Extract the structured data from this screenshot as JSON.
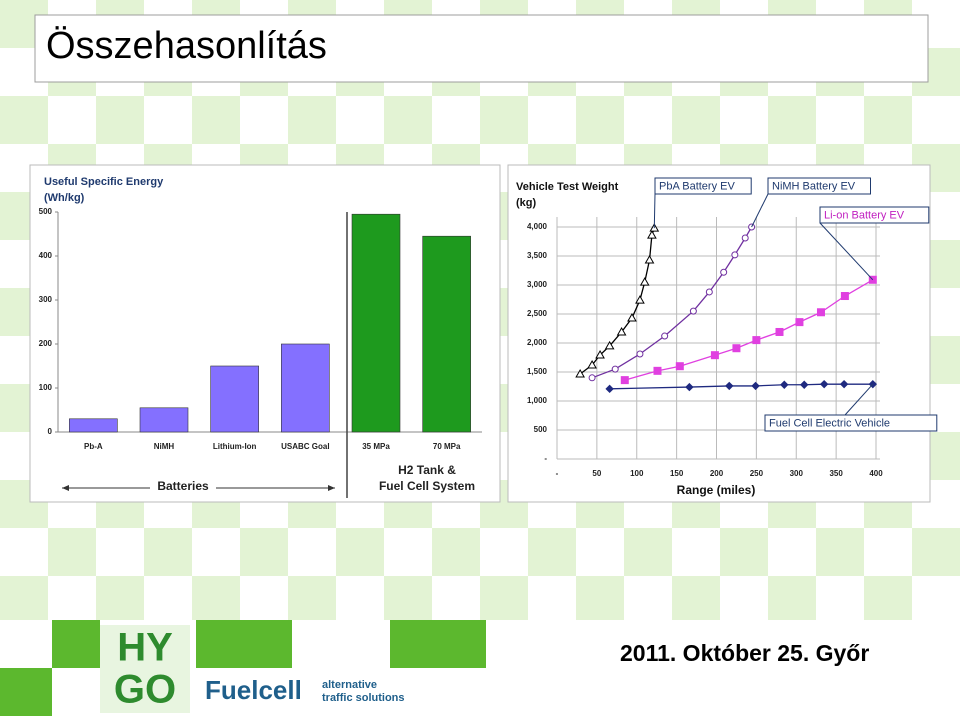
{
  "header": {
    "title": "Összehasonlítás"
  },
  "footer": {
    "date": "2011. Október 25. Győr",
    "logo": [
      "HY",
      "GO"
    ],
    "brand": "Fuelcell",
    "tagline": [
      "alternative",
      "traffic solutions"
    ]
  },
  "chart_data": [
    {
      "type": "bar",
      "title": [
        "Useful Specific Energy",
        "(Wh/kg)"
      ],
      "categories": [
        "Pb-A",
        "NiMH",
        "Lithium-Ion",
        "USABC Goal",
        "35 MPa",
        "70 MPa"
      ],
      "values": [
        30,
        55,
        150,
        200,
        495,
        445
      ],
      "colors": [
        "#8470ff",
        "#8470ff",
        "#8470ff",
        "#8470ff",
        "#1e9a1e",
        "#1e9a1e"
      ],
      "ylim": [
        0,
        500
      ],
      "yticks": [
        0,
        100,
        200,
        300,
        400,
        500
      ],
      "group_labels": [
        [
          "Batteries"
        ],
        [
          "H2 Tank &",
          "Fuel Cell System"
        ]
      ]
    },
    {
      "type": "line",
      "title": [
        "Vehicle Test Weight",
        "(kg)"
      ],
      "xlabel": "Range (miles)",
      "xlim": [
        0,
        400
      ],
      "xticks": [
        {
          "value": 0,
          "label": "-"
        },
        50,
        100,
        150,
        200,
        250,
        300,
        350,
        400
      ],
      "ylim": [
        0,
        4000
      ],
      "yticks": [
        {
          "value": 0,
          "label": "-"
        },
        500,
        {
          "value": 1000,
          "label": "1,000"
        },
        {
          "value": 1500,
          "label": "1,500"
        },
        {
          "value": 2000,
          "label": "2,000"
        },
        {
          "value": 2500,
          "label": "2,500"
        },
        {
          "value": 3000,
          "label": "3,000"
        },
        {
          "value": 3500,
          "label": "3,500"
        },
        {
          "value": 4000,
          "label": "4,000"
        }
      ],
      "grid": true,
      "series": [
        {
          "name": "PbA Battery EV",
          "color": "#000000",
          "marker": "triangle",
          "x": [
            29,
            44,
            54,
            66,
            81,
            94,
            104,
            110,
            116,
            119,
            122
          ],
          "values": [
            1466,
            1620,
            1793,
            1950,
            2190,
            2430,
            2740,
            3050,
            3430,
            3860,
            3980
          ]
        },
        {
          "name": "NiMH Battery EV",
          "color": "#7030a0",
          "marker": "circle",
          "x": [
            44,
            73,
            104,
            135,
            171,
            191,
            209,
            223,
            236,
            244
          ],
          "values": [
            1400,
            1550,
            1810,
            2120,
            2550,
            2880,
            3220,
            3520,
            3810,
            4000
          ]
        },
        {
          "name": "Li-on Battery EV",
          "color": "#e040e0",
          "marker": "square",
          "x": [
            85,
            126,
            154,
            198,
            225,
            250,
            279,
            304,
            331,
            361,
            396
          ],
          "values": [
            1360,
            1520,
            1600,
            1790,
            1910,
            2050,
            2190,
            2360,
            2530,
            2810,
            3090
          ]
        },
        {
          "name": "Fuel Cell Electric Vehicle",
          "color": "#1f2a80",
          "marker": "diamond",
          "x": [
            66,
            166,
            216,
            249,
            285,
            310,
            335,
            360,
            396
          ],
          "values": [
            1210,
            1240,
            1260,
            1260,
            1280,
            1280,
            1290,
            1290,
            1290
          ]
        }
      ]
    }
  ]
}
